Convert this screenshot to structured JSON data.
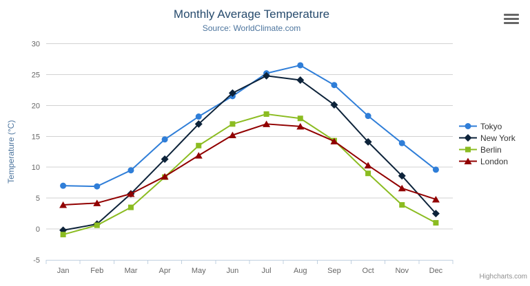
{
  "title": "Monthly Average Temperature",
  "subtitle": "Source: WorldClimate.com",
  "credit": "Highcharts.com",
  "export_button": {
    "icon": "hamburger-menu-icon"
  },
  "colors": {
    "title": "#274b6d",
    "subtitle": "#4d759e",
    "axis_title": "#4d759e",
    "axis_labels": "#666666",
    "gridline": "#d2d2d2",
    "xaxis_line": "#c0d0e0",
    "legend_text": "#333333",
    "credit_text": "#909090"
  },
  "chart_data": {
    "type": "line",
    "title": "Monthly Average Temperature",
    "subtitle": "Source: WorldClimate.com",
    "xlabel": "",
    "ylabel": "Temperature (°C)",
    "ylim": [
      -5,
      30
    ],
    "yticks": [
      -5,
      0,
      5,
      10,
      15,
      20,
      25,
      30
    ],
    "grid": true,
    "legend_position": "right",
    "categories": [
      "Jan",
      "Feb",
      "Mar",
      "Apr",
      "May",
      "Jun",
      "Jul",
      "Aug",
      "Sep",
      "Oct",
      "Nov",
      "Dec"
    ],
    "series": [
      {
        "name": "Tokyo",
        "color": "#2f7ed8",
        "marker": "circle",
        "values": [
          7.0,
          6.9,
          9.5,
          14.5,
          18.2,
          21.5,
          25.2,
          26.5,
          23.3,
          18.3,
          13.9,
          9.6
        ]
      },
      {
        "name": "New York",
        "color": "#0d233a",
        "marker": "diamond",
        "values": [
          -0.2,
          0.8,
          5.7,
          11.3,
          17.0,
          22.0,
          24.8,
          24.1,
          20.1,
          14.1,
          8.6,
          2.5
        ]
      },
      {
        "name": "Berlin",
        "color": "#8bbc21",
        "marker": "square",
        "values": [
          -0.9,
          0.6,
          3.5,
          8.4,
          13.5,
          17.0,
          18.6,
          17.9,
          14.3,
          9.0,
          3.9,
          1.0
        ]
      },
      {
        "name": "London",
        "color": "#910000",
        "marker": "triangle",
        "values": [
          3.9,
          4.2,
          5.7,
          8.5,
          11.9,
          15.2,
          17.0,
          16.6,
          14.2,
          10.3,
          6.6,
          4.8
        ]
      }
    ]
  }
}
